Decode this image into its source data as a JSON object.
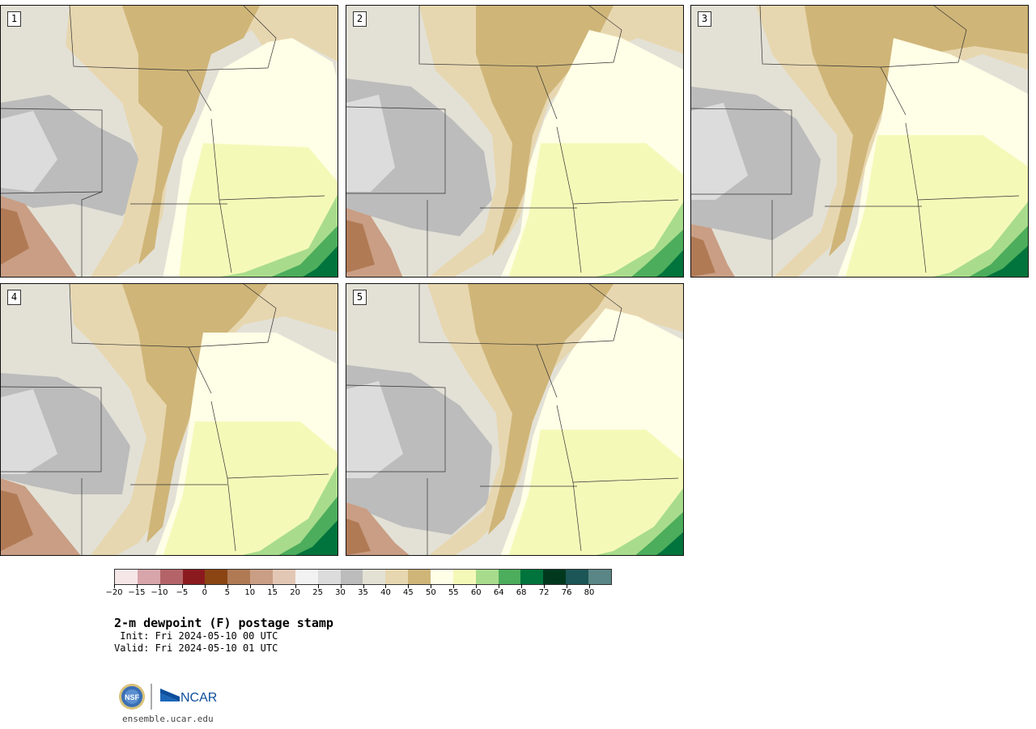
{
  "panels": [
    {
      "number": "1"
    },
    {
      "number": "2"
    },
    {
      "number": "3"
    },
    {
      "number": "4"
    },
    {
      "number": "5"
    }
  ],
  "colorbar": {
    "colors": [
      "#f5e6e8",
      "#d7a5aa",
      "#b46468",
      "#8b1a1f",
      "#8b4513",
      "#b07a55",
      "#c99e84",
      "#e3c7b5",
      "#f2f2f2",
      "#dcdcdc",
      "#bcbcbc",
      "#e2e1d4",
      "#e7d7b0",
      "#cfb578",
      "#fffee6",
      "#f5f9b8",
      "#a8dc8c",
      "#4cad5c",
      "#00743c",
      "#01391f",
      "#1d5656",
      "#5a8686"
    ],
    "tick_labels": [
      "−20",
      "−15",
      "−10",
      "−5",
      "0",
      "5",
      "10",
      "15",
      "20",
      "25",
      "30",
      "35",
      "40",
      "45",
      "50",
      "55",
      "60",
      "64",
      "68",
      "72",
      "76",
      "80"
    ]
  },
  "title": "2-m dewpoint (F) postage stamp",
  "init": " Init: Fri 2024-05-10 00 UTC",
  "valid": "Valid: Fri 2024-05-10 01 UTC",
  "logos": {
    "nsf": "NSF",
    "ncar": "NCAR"
  },
  "website": "ensemble.ucar.edu"
}
